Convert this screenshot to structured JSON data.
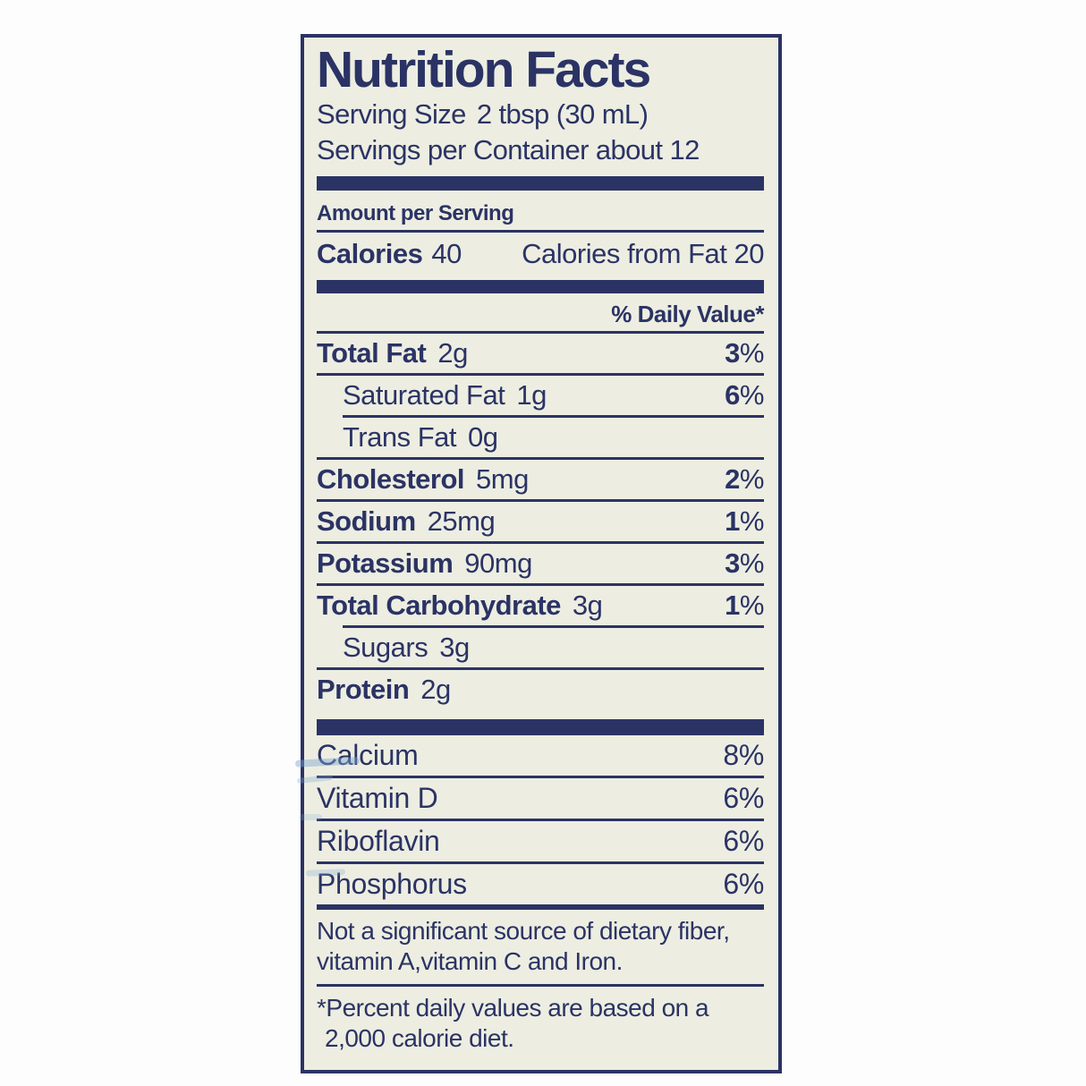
{
  "label": {
    "title": "Nutrition Facts",
    "serving_size_label": "Serving Size",
    "serving_size_value": "2 tbsp (30 mL)",
    "servings_per_container": "Servings per Container about 12",
    "amount_per_serving": "Amount per Serving",
    "calories_label": "Calories",
    "calories_value": "40",
    "calories_from_fat": "Calories from Fat 20",
    "daily_value_header": "% Daily Value*",
    "percent_sign": "%",
    "nutrients": [
      {
        "name": "Total Fat",
        "amount": "2g",
        "dv": "3"
      },
      {
        "name": "Saturated Fat",
        "amount": "1g",
        "dv": "6"
      },
      {
        "name": "Trans Fat",
        "amount": "0g",
        "dv": ""
      },
      {
        "name": "Cholesterol",
        "amount": "5mg",
        "dv": "2"
      },
      {
        "name": "Sodium",
        "amount": "25mg",
        "dv": "1"
      },
      {
        "name": "Potassium",
        "amount": "90mg",
        "dv": "3"
      },
      {
        "name": "Total Carbohydrate",
        "amount": "3g",
        "dv": "1"
      },
      {
        "name": "Sugars",
        "amount": "3g",
        "dv": ""
      },
      {
        "name": "Protein",
        "amount": "2g",
        "dv": ""
      }
    ],
    "vitamins": [
      {
        "name": "Calcium",
        "dv": "8"
      },
      {
        "name": "Vitamin D",
        "dv": "6"
      },
      {
        "name": "Riboflavin",
        "dv": "6"
      },
      {
        "name": "Phosphorus",
        "dv": "6"
      }
    ],
    "footnote_insignificant_line1": "Not a significant source of dietary fiber,",
    "footnote_insignificant_line2": "vitamin A,vitamin C and Iron.",
    "footnote_daily_values_line1": "*Percent daily values are based on a",
    "footnote_daily_values_line2": "2,000 calorie diet."
  }
}
